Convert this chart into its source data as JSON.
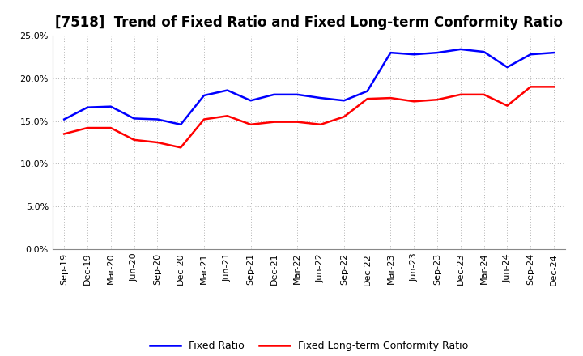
{
  "title": "[7518]  Trend of Fixed Ratio and Fixed Long-term Conformity Ratio",
  "x_labels": [
    "Sep-19",
    "Dec-19",
    "Mar-20",
    "Jun-20",
    "Sep-20",
    "Dec-20",
    "Mar-21",
    "Jun-21",
    "Sep-21",
    "Dec-21",
    "Mar-22",
    "Jun-22",
    "Sep-22",
    "Dec-22",
    "Mar-23",
    "Jun-23",
    "Sep-23",
    "Dec-23",
    "Mar-24",
    "Jun-24",
    "Sep-24",
    "Dec-24"
  ],
  "fixed_ratio": [
    15.2,
    16.6,
    16.7,
    15.3,
    15.2,
    14.6,
    18.0,
    18.6,
    17.4,
    18.1,
    18.1,
    17.7,
    17.4,
    18.5,
    23.0,
    22.8,
    23.0,
    23.4,
    23.1,
    21.3,
    22.8,
    23.0
  ],
  "fixed_lt_ratio": [
    13.5,
    14.2,
    14.2,
    12.8,
    12.5,
    11.9,
    15.2,
    15.6,
    14.6,
    14.9,
    14.9,
    14.6,
    15.5,
    17.6,
    17.7,
    17.3,
    17.5,
    18.1,
    18.1,
    16.8,
    19.0,
    19.0
  ],
  "fixed_ratio_color": "#0000FF",
  "fixed_lt_ratio_color": "#FF0000",
  "ylim": [
    0,
    25
  ],
  "yticks": [
    0,
    5,
    10,
    15,
    20,
    25
  ],
  "background_color": "#FFFFFF",
  "plot_bg_color": "#FFFFFF",
  "grid_color": "#999999",
  "title_fontsize": 12,
  "tick_fontsize": 8,
  "legend_labels": [
    "Fixed Ratio",
    "Fixed Long-term Conformity Ratio"
  ]
}
